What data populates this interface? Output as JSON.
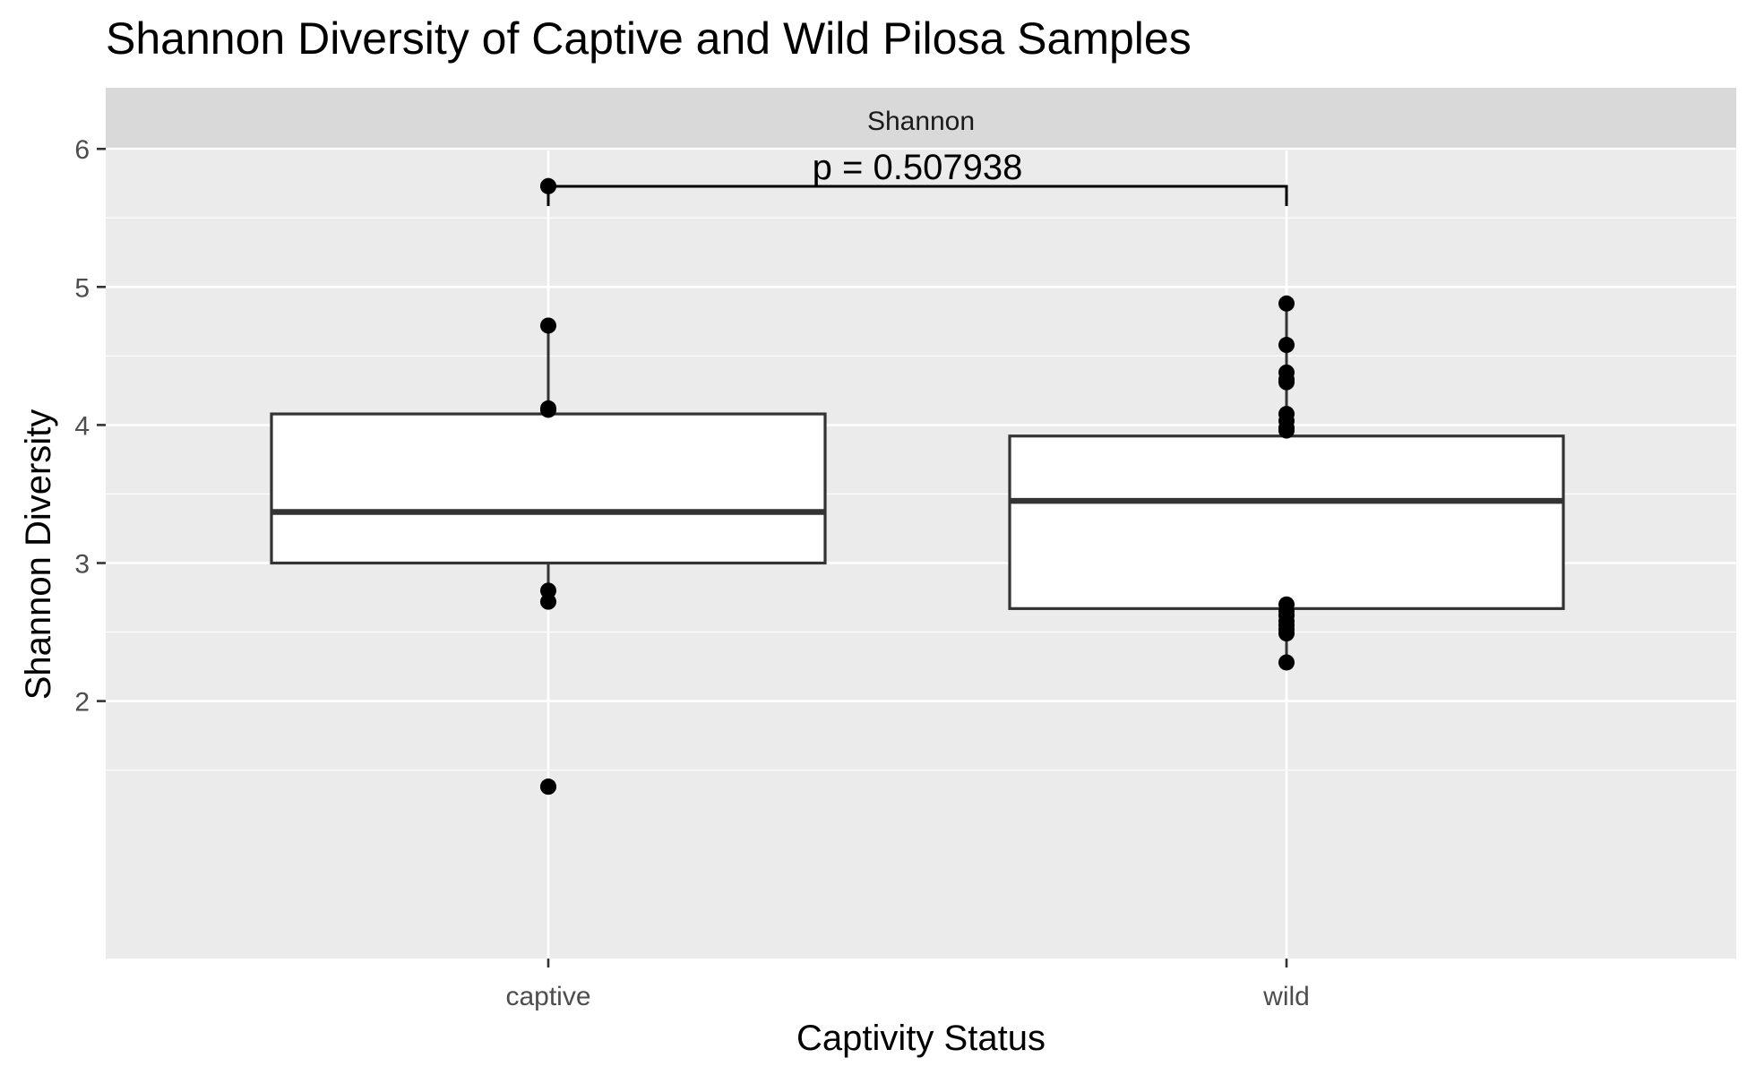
{
  "chart_data": {
    "type": "box",
    "title": "Shannon Diversity of Captive and Wild Pilosa Samples",
    "facet_label": "Shannon",
    "xlabel": "Captivity Status",
    "ylabel": "Shannon Diversity",
    "categories": [
      "captive",
      "wild"
    ],
    "ylim": [
      1.1,
      7.0
    ],
    "y_ticks": [
      2,
      3,
      4,
      5,
      6
    ],
    "grid": true,
    "boxes": [
      {
        "category": "captive",
        "whisker_low": 2.72,
        "q1": 3.0,
        "median": 3.37,
        "q3": 4.08,
        "whisker_high": 4.72,
        "outliers": [
          5.73,
          1.38
        ]
      },
      {
        "category": "wild",
        "whisker_low": 2.28,
        "q1": 2.67,
        "median": 3.45,
        "q3": 3.92,
        "whisker_high": 4.88,
        "outliers": []
      }
    ],
    "points": [
      {
        "category": "captive",
        "values": [
          5.73,
          4.72,
          4.12,
          4.11,
          2.8,
          2.72,
          1.38
        ]
      },
      {
        "category": "wild",
        "values": [
          4.88,
          4.58,
          4.38,
          4.33,
          4.31,
          4.08,
          4.03,
          3.98,
          3.96,
          2.7,
          2.65,
          2.62,
          2.58,
          2.55,
          2.52,
          2.49,
          2.28
        ]
      }
    ],
    "annotation": {
      "text": "p = 0.507938",
      "from": "captive",
      "to": "wild"
    },
    "colors": {
      "panel": "#ebebeb",
      "strip": "#d9d9d9",
      "grid": "#ffffff",
      "box_fill": "#ffffff",
      "box_line": "#333333",
      "point": "#000000"
    }
  }
}
